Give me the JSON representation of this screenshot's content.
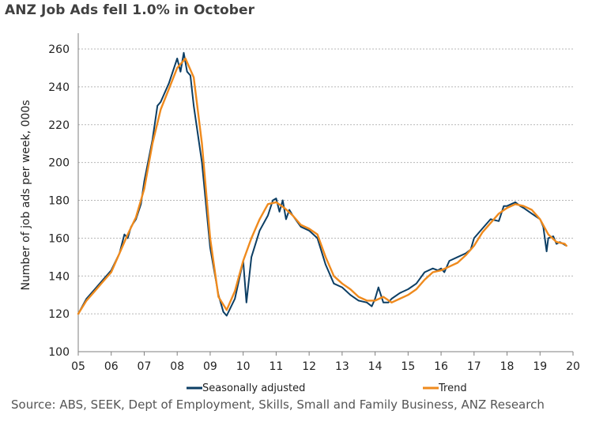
{
  "title": "ANZ Job Ads fell 1.0% in October",
  "source": "Source: ABS, SEEK, Dept of Employment, Skills, Small and Family Business, ANZ Research",
  "colors": {
    "sa": "#0c3e64",
    "trend": "#ef8a1d",
    "grid": "#b7b7b7",
    "axis": "#7f7f7f"
  },
  "chart_data": {
    "type": "line",
    "title": "ANZ Job Ads fell 1.0% in October",
    "xlabel": "",
    "ylabel": "Number of job ads per week, 000s",
    "xlim": [
      2005,
      2020
    ],
    "ylim": [
      100,
      260
    ],
    "yticks": [
      100,
      120,
      140,
      160,
      180,
      200,
      220,
      240,
      260
    ],
    "xtick_labels": [
      "05",
      "06",
      "07",
      "08",
      "09",
      "10",
      "11",
      "12",
      "13",
      "14",
      "15",
      "16",
      "17",
      "18",
      "19",
      "20"
    ],
    "grid": "horizontal dashed",
    "legend": "bottom",
    "series": [
      {
        "name": "Seasonally adjusted",
        "x": [
          2005.0,
          2005.25,
          2005.5,
          2005.75,
          2006.0,
          2006.25,
          2006.4,
          2006.5,
          2006.6,
          2006.75,
          2006.9,
          2007.0,
          2007.25,
          2007.4,
          2007.5,
          2007.75,
          2008.0,
          2008.1,
          2008.2,
          2008.3,
          2008.4,
          2008.5,
          2008.75,
          2009.0,
          2009.25,
          2009.4,
          2009.5,
          2009.75,
          2010.0,
          2010.1,
          2010.25,
          2010.5,
          2010.75,
          2010.9,
          2011.0,
          2011.1,
          2011.2,
          2011.3,
          2011.4,
          2011.5,
          2011.75,
          2012.0,
          2012.25,
          2012.5,
          2012.75,
          2013.0,
          2013.25,
          2013.5,
          2013.75,
          2013.9,
          2014.0,
          2014.1,
          2014.25,
          2014.4,
          2014.5,
          2014.75,
          2015.0,
          2015.25,
          2015.5,
          2015.75,
          2015.9,
          2016.0,
          2016.1,
          2016.25,
          2016.5,
          2016.75,
          2016.9,
          2017.0,
          2017.25,
          2017.5,
          2017.75,
          2017.9,
          2018.0,
          2018.25,
          2018.4,
          2018.5,
          2018.75,
          2019.0,
          2019.1,
          2019.2,
          2019.25,
          2019.4,
          2019.5,
          2019.6,
          2019.8
        ],
        "values": [
          120,
          128,
          133,
          138,
          143,
          152,
          162,
          160,
          166,
          170,
          178,
          190,
          212,
          230,
          232,
          242,
          255,
          248,
          258,
          248,
          246,
          230,
          200,
          155,
          130,
          121,
          119,
          128,
          148,
          126,
          150,
          164,
          172,
          180,
          181,
          174,
          180,
          170,
          175,
          172,
          166,
          164,
          160,
          146,
          136,
          134,
          130,
          127,
          126,
          124,
          128,
          134,
          126,
          126,
          128,
          131,
          133,
          136,
          142,
          144,
          143,
          144,
          142,
          148,
          150,
          152,
          154,
          160,
          165,
          170,
          169,
          177,
          177,
          179,
          177,
          176,
          173,
          170,
          166,
          153,
          160,
          161,
          157,
          158,
          156
        ]
      },
      {
        "name": "Trend",
        "x": [
          2005.0,
          2005.25,
          2005.5,
          2005.75,
          2006.0,
          2006.25,
          2006.5,
          2006.75,
          2007.0,
          2007.25,
          2007.5,
          2007.75,
          2008.0,
          2008.25,
          2008.5,
          2008.75,
          2009.0,
          2009.25,
          2009.5,
          2009.75,
          2010.0,
          2010.25,
          2010.5,
          2010.75,
          2011.0,
          2011.25,
          2011.5,
          2011.75,
          2012.0,
          2012.25,
          2012.5,
          2012.75,
          2013.0,
          2013.25,
          2013.5,
          2013.75,
          2014.0,
          2014.25,
          2014.5,
          2014.75,
          2015.0,
          2015.25,
          2015.5,
          2015.75,
          2016.0,
          2016.25,
          2016.5,
          2016.75,
          2017.0,
          2017.25,
          2017.5,
          2017.75,
          2018.0,
          2018.25,
          2018.5,
          2018.75,
          2019.0,
          2019.25,
          2019.5,
          2019.75,
          2019.8
        ],
        "values": [
          120,
          127,
          132,
          137,
          142,
          152,
          162,
          171,
          186,
          210,
          228,
          239,
          250,
          255,
          245,
          210,
          160,
          129,
          122,
          132,
          148,
          160,
          170,
          178,
          179,
          176,
          172,
          167,
          165,
          162,
          150,
          140,
          136,
          133,
          129,
          127,
          127,
          129,
          126,
          128,
          130,
          133,
          138,
          142,
          143,
          145,
          147,
          151,
          156,
          163,
          168,
          173,
          176,
          178,
          177,
          175,
          170,
          162,
          158,
          157,
          156
        ]
      }
    ]
  }
}
